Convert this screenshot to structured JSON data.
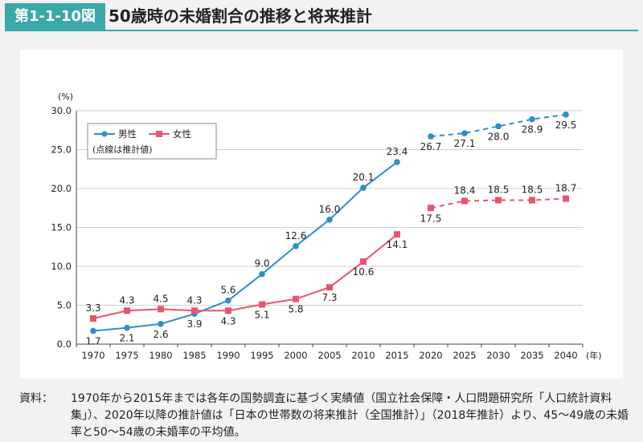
{
  "header": {
    "figure_number": "第1-1-10図",
    "title": "50歳時の未婚割合の推移と将来推計"
  },
  "chart_data": {
    "type": "line",
    "title": "50歳時の未婚割合の推移と将来推計",
    "ylabel": "(%)",
    "xlabel": "(年)",
    "ylim": [
      0,
      30
    ],
    "yticks": [
      "0.0",
      "5.0",
      "10.0",
      "15.0",
      "20.0",
      "25.0",
      "30.0"
    ],
    "categories": [
      "1970",
      "1975",
      "1980",
      "1985",
      "1990",
      "1995",
      "2000",
      "2005",
      "2010",
      "2015",
      "2020",
      "2025",
      "2030",
      "2035",
      "2040"
    ],
    "legend_note": "(点線は推計値)",
    "series": [
      {
        "name": "男性",
        "color": "#2e8fc7",
        "values": [
          1.7,
          2.1,
          2.6,
          3.9,
          5.6,
          9.0,
          12.6,
          16.0,
          20.1,
          23.4,
          26.7,
          27.1,
          28.0,
          28.9,
          29.5
        ],
        "labels": [
          "1.7",
          "2.1",
          "2.6",
          "3.9",
          "5.6",
          "9.0",
          "12.6",
          "16.0",
          "20.1",
          "23.4",
          "26.7",
          "27.1",
          "28.0",
          "28.9",
          "29.5"
        ],
        "projected_from_index": 10
      },
      {
        "name": "女性",
        "color": "#e8546e",
        "values": [
          3.3,
          4.3,
          4.5,
          4.3,
          4.3,
          5.1,
          5.8,
          7.3,
          10.6,
          14.1,
          17.5,
          18.4,
          18.5,
          18.5,
          18.7
        ],
        "labels": [
          "3.3",
          "4.3",
          "4.5",
          "4.3",
          "4.3",
          "5.1",
          "5.8",
          "7.3",
          "10.6",
          "14.1",
          "17.5",
          "18.4",
          "18.5",
          "18.5",
          "18.7"
        ],
        "projected_from_index": 10
      }
    ]
  },
  "source": {
    "label": "資料：",
    "text": "1970年から2015年までは各年の国勢調査に基づく実績値（国立社会保障・人口問題研究所「人口統計資料集」）、2020年以降の推計値は「日本の世帯数の将来推計（全国推計）」（2018年推計）より、45〜49歳の未婚率と50〜54歳の未婚率の平均値。"
  }
}
